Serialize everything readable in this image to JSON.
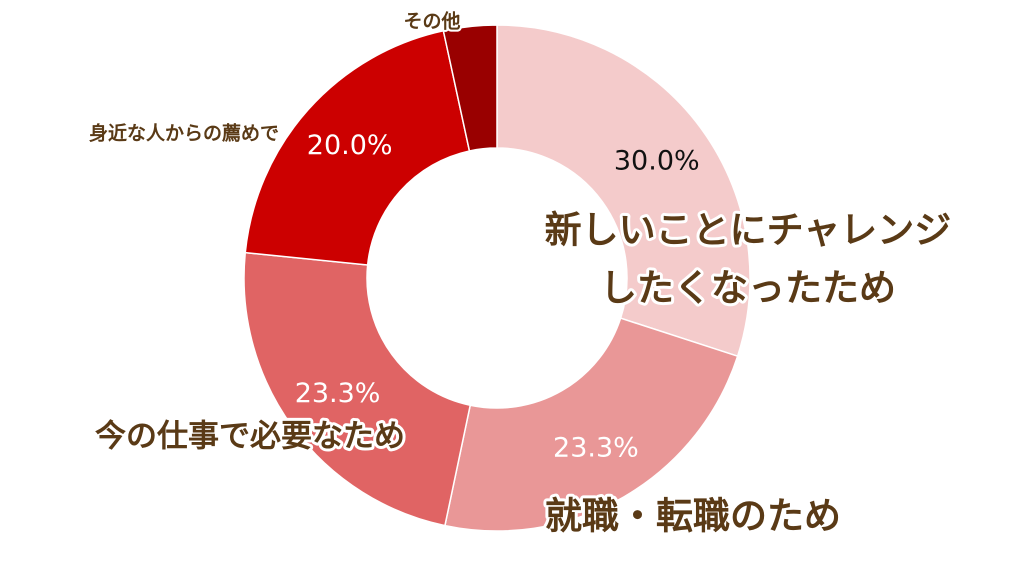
{
  "chart_data": {
    "type": "pie",
    "title": "",
    "categories": [
      "新しいことにチャレンジしたくなったため",
      "就職・転職のため",
      "今の仕事で必要なため",
      "身近な人からの薦めで",
      "その他"
    ],
    "values": [
      30.0,
      23.3,
      23.3,
      20.0,
      3.4
    ],
    "value_labels": [
      "30.0%",
      "23.3%",
      "23.3%",
      "20.0%",
      ""
    ],
    "colors": [
      "#f4cbcb",
      "#e99797",
      "#e06464",
      "#cc0000",
      "#990000"
    ],
    "value_label_colors": [
      "#111111",
      "#ffffff",
      "#ffffff",
      "#ffffff",
      "#ffffff"
    ],
    "legend": "none",
    "donut": true
  },
  "slice_labels": [
    {
      "lines": [
        "新しいことにチャレンジ",
        "したくなったため"
      ]
    },
    {
      "lines": [
        "就職・転職のため"
      ]
    },
    {
      "lines": [
        "今の仕事で必要なため"
      ]
    },
    {
      "lines": [
        "身近な人からの薦めで"
      ]
    },
    {
      "lines": [
        "その他"
      ]
    }
  ]
}
